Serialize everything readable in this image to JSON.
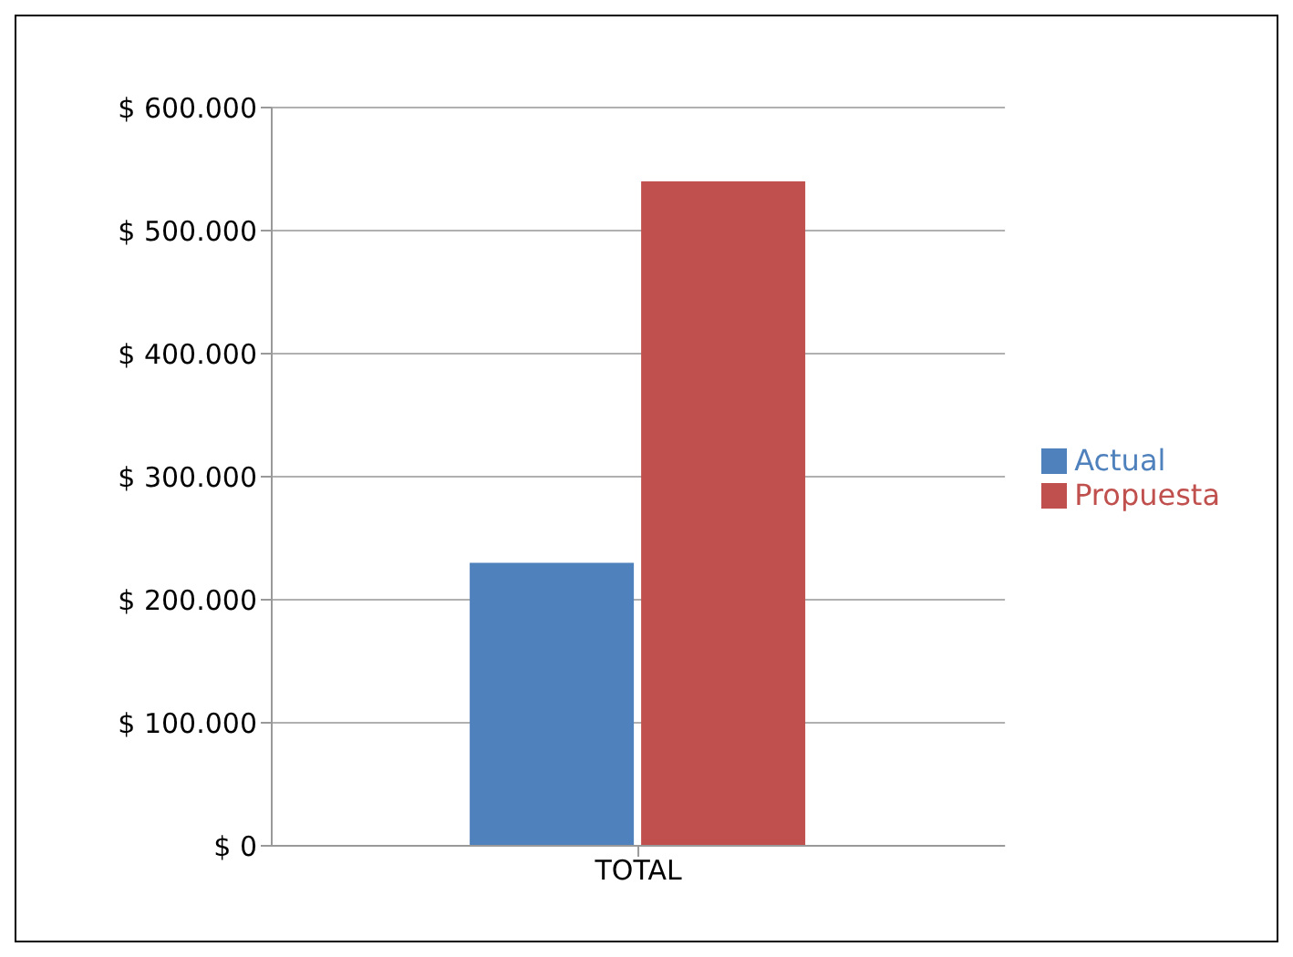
{
  "chart_data": {
    "type": "bar",
    "categories": [
      "TOTAL"
    ],
    "series": [
      {
        "name": "Actual",
        "color": "#4f81bd",
        "values": [
          230000
        ]
      },
      {
        "name": "Propuesta",
        "color": "#c0504d",
        "values": [
          540000
        ]
      }
    ],
    "ylim": [
      0,
      600000
    ],
    "yticks": [
      {
        "value": 0,
        "label": "$ 0"
      },
      {
        "value": 100000,
        "label": "$ 100.000"
      },
      {
        "value": 200000,
        "label": "$ 200.000"
      },
      {
        "value": 300000,
        "label": "$ 300.000"
      },
      {
        "value": 400000,
        "label": "$ 400.000"
      },
      {
        "value": 500000,
        "label": "$ 500.000"
      },
      {
        "value": 600000,
        "label": "$ 600.000"
      }
    ],
    "grid": "y",
    "legend": "right"
  }
}
